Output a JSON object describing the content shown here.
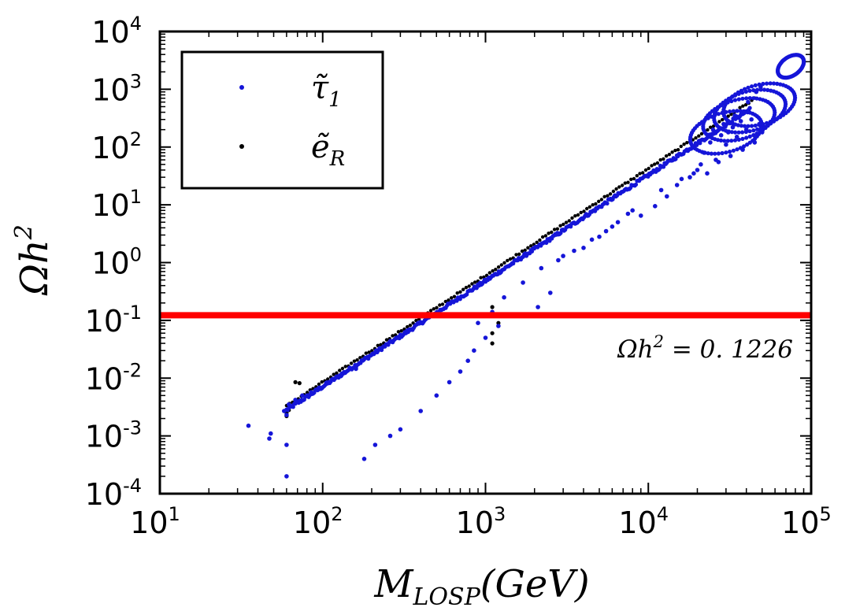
{
  "chart_data": {
    "type": "scatter",
    "x_scale": "log",
    "y_scale": "log",
    "xlim": [
      10,
      100000
    ],
    "ylim": [
      0.0001,
      10000
    ],
    "xlabel": "M_LOSP(GeV)",
    "xlabel_main": "M",
    "xlabel_sub": "LOSP",
    "xlabel_rest": "(GeV)",
    "ylabel": "Ωh²",
    "ylabel_main": "Ωh",
    "ylabel_sup": "2",
    "x_ticks": [
      {
        "value": 10,
        "base": "10",
        "exp": "1"
      },
      {
        "value": 100,
        "base": "10",
        "exp": "2"
      },
      {
        "value": 1000,
        "base": "10",
        "exp": "3"
      },
      {
        "value": 10000,
        "base": "10",
        "exp": "4"
      },
      {
        "value": 100000,
        "base": "10",
        "exp": "5"
      }
    ],
    "y_ticks": [
      {
        "value": 0.0001,
        "base": "10",
        "exp": "-4"
      },
      {
        "value": 0.001,
        "base": "10",
        "exp": "-3"
      },
      {
        "value": 0.01,
        "base": "10",
        "exp": "-2"
      },
      {
        "value": 0.1,
        "base": "10",
        "exp": "-1"
      },
      {
        "value": 1,
        "base": "10",
        "exp": "0"
      },
      {
        "value": 10,
        "base": "10",
        "exp": "1"
      },
      {
        "value": 100,
        "base": "10",
        "exp": "2"
      },
      {
        "value": 1000,
        "base": "10",
        "exp": "3"
      },
      {
        "value": 10000,
        "base": "10",
        "exp": "4"
      }
    ],
    "legend": {
      "position": "upper-left",
      "entries": [
        {
          "label": "τ̃₁",
          "label_main": "τ̃",
          "label_sub": "1",
          "color": "#1515d8"
        },
        {
          "label": "ẽ_R",
          "label_main": "ẽ",
          "label_sub": "R",
          "color": "#000000"
        }
      ]
    },
    "reference_line": {
      "y": 0.1226,
      "label": "Ωh² = 0.1226",
      "label_main": "Ωh",
      "label_sup": "2",
      "label_rest": " = 0. 1226",
      "color": "#ff0000"
    },
    "series": [
      {
        "name": "τ̃₁",
        "color": "#1515d8",
        "band": {
          "x_start": 60,
          "x_end": 42000,
          "y_at_x_start": 0.0028,
          "slope": 1.83
        },
        "points": [
          [
            35,
            0.0015
          ],
          [
            48,
            0.0011
          ],
          [
            47,
            0.0009
          ],
          [
            60,
            0.0007
          ],
          [
            60,
            0.0002
          ],
          [
            58,
            0.0027
          ],
          [
            60,
            0.0023
          ],
          [
            62,
            0.0035
          ],
          [
            68,
            0.0042
          ],
          [
            75,
            0.005
          ],
          [
            85,
            0.0057
          ],
          [
            95,
            0.0068
          ],
          [
            110,
            0.0083
          ],
          [
            130,
            0.011
          ],
          [
            160,
            0.0145
          ],
          [
            180,
            0.0004
          ],
          [
            210,
            0.0007
          ],
          [
            260,
            0.001
          ],
          [
            300,
            0.0013
          ],
          [
            400,
            0.0027
          ],
          [
            500,
            0.005
          ],
          [
            600,
            0.0085
          ],
          [
            700,
            0.013
          ],
          [
            780,
            0.02
          ],
          [
            850,
            0.03
          ],
          [
            1000,
            0.05
          ],
          [
            1200,
            0.08
          ],
          [
            1500,
            0.12
          ],
          [
            2100,
            0.17
          ],
          [
            2500,
            0.3
          ],
          [
            900,
            0.09
          ],
          [
            1100,
            0.14
          ],
          [
            1300,
            0.25
          ],
          [
            1700,
            0.45
          ],
          [
            2200,
            0.8
          ],
          [
            3000,
            1.3
          ],
          [
            4000,
            1.8
          ],
          [
            5000,
            2.8
          ],
          [
            6000,
            4.2
          ],
          [
            7500,
            7.0
          ],
          [
            9000,
            6.5
          ],
          [
            11000,
            9.5
          ],
          [
            13000,
            14.0
          ],
          [
            15000,
            22.0
          ],
          [
            18000,
            30.0
          ],
          [
            20000,
            40.0
          ],
          [
            23000,
            35.0
          ],
          [
            27000,
            55.0
          ],
          [
            32000,
            70.0
          ],
          [
            38000,
            90.0
          ],
          [
            45000,
            120.0
          ],
          [
            50000,
            180.0
          ],
          [
            48000,
            250.0
          ],
          [
            35000,
            150.0
          ],
          [
            26000,
            60.0
          ],
          [
            22000,
            80.0
          ],
          [
            30000,
            110.0
          ],
          [
            40000,
            200.0
          ],
          [
            43000,
            300.0
          ],
          [
            25000,
            200.0
          ],
          [
            29000,
            250.0
          ],
          [
            34000,
            350.0
          ],
          [
            41000,
            600.0
          ],
          [
            46000,
            900.0
          ],
          [
            49000,
            1100.0
          ],
          [
            28000,
            160.0
          ],
          [
            33000,
            220.0
          ],
          [
            37000,
            280.0
          ],
          [
            24000,
            120.0
          ],
          [
            31000,
            180.0
          ],
          [
            5500,
            3.5
          ],
          [
            6500,
            5.0
          ],
          [
            8000,
            8.0
          ],
          [
            12000,
            18.0
          ],
          [
            16000,
            28.0
          ],
          [
            19000,
            35.0
          ],
          [
            21000,
            50.0
          ],
          [
            4500,
            2.5
          ],
          [
            3500,
            1.6
          ],
          [
            2800,
            1.1
          ]
        ]
      },
      {
        "name": "ẽ_R",
        "color": "#000000",
        "band": {
          "x_start": 60,
          "x_end": 45000,
          "y_at_x_start": 0.0025,
          "slope": 1.85
        },
        "points": [
          [
            60,
            0.0025
          ],
          [
            60,
            0.0022
          ],
          [
            62,
            0.0028
          ],
          [
            68,
            0.0085
          ],
          [
            72,
            0.0082
          ],
          [
            1100,
            0.06
          ],
          [
            1100,
            0.04
          ],
          [
            1200,
            0.09
          ],
          [
            1100,
            0.17
          ]
        ]
      }
    ]
  }
}
